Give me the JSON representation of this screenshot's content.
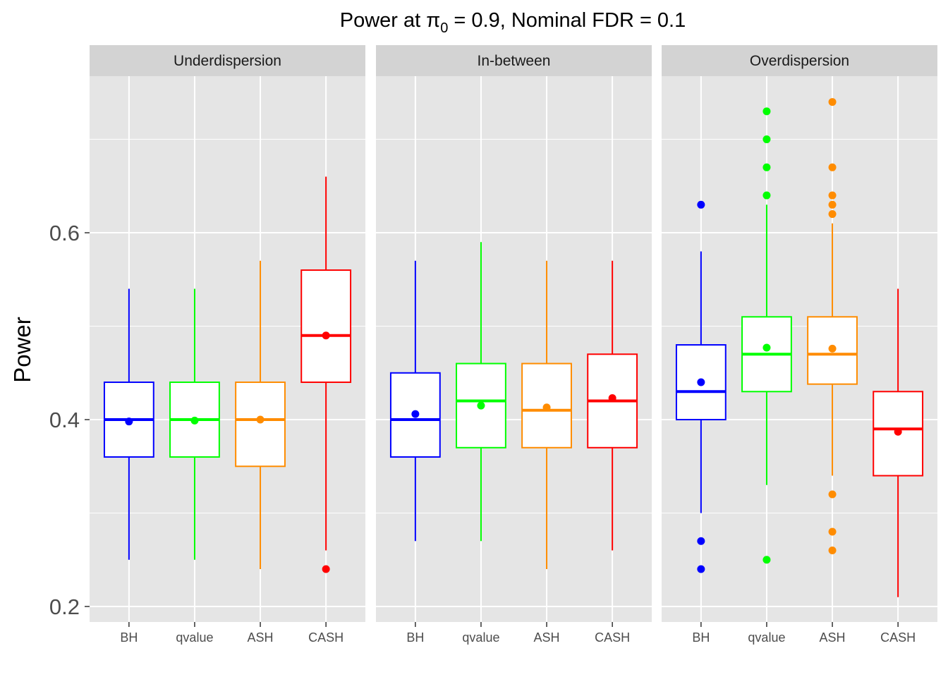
{
  "chart_data": {
    "type": "boxplot",
    "title_main": "Power at π",
    "title_sub": "0",
    "title_rest": " = 0.9, Nominal FDR = 0.1",
    "ylabel": "Power",
    "xlabel": "",
    "ylim": [
      0.1834,
      0.7676
    ],
    "yticks": [
      0.2,
      0.4,
      0.6
    ],
    "ytick_labels": [
      "0.2",
      "0.4",
      "0.6"
    ],
    "yminor": [
      0.3,
      0.5,
      0.7
    ],
    "grid": true,
    "categories": [
      "BH",
      "qvalue",
      "ASH",
      "CASH"
    ],
    "colors": {
      "BH": "#0000FF",
      "qvalue": "#00FF00",
      "ASH": "#FF8C00",
      "CASH": "#FF0000"
    },
    "panel_background": "#E5E5E5",
    "strip_background": "#D3D3D3",
    "panels": [
      {
        "name": "Underdispersion",
        "boxes": [
          {
            "lower_whisker": 0.25,
            "q1": 0.36,
            "median": 0.4,
            "q3": 0.44,
            "upper_whisker": 0.54,
            "mean": 0.398,
            "outliers": []
          },
          {
            "lower_whisker": 0.25,
            "q1": 0.36,
            "median": 0.4,
            "q3": 0.44,
            "upper_whisker": 0.54,
            "mean": 0.399,
            "outliers": []
          },
          {
            "lower_whisker": 0.24,
            "q1": 0.35,
            "median": 0.4,
            "q3": 0.44,
            "upper_whisker": 0.57,
            "mean": 0.4,
            "outliers": []
          },
          {
            "lower_whisker": 0.26,
            "q1": 0.44,
            "median": 0.49,
            "q3": 0.56,
            "upper_whisker": 0.66,
            "mean": 0.49,
            "outliers": [
              0.24
            ]
          }
        ]
      },
      {
        "name": "In-between",
        "boxes": [
          {
            "lower_whisker": 0.27,
            "q1": 0.36,
            "median": 0.4,
            "q3": 0.45,
            "upper_whisker": 0.57,
            "mean": 0.406,
            "outliers": []
          },
          {
            "lower_whisker": 0.27,
            "q1": 0.37,
            "median": 0.42,
            "q3": 0.46,
            "upper_whisker": 0.59,
            "mean": 0.415,
            "outliers": []
          },
          {
            "lower_whisker": 0.24,
            "q1": 0.37,
            "median": 0.41,
            "q3": 0.46,
            "upper_whisker": 0.57,
            "mean": 0.413,
            "outliers": []
          },
          {
            "lower_whisker": 0.26,
            "q1": 0.37,
            "median": 0.42,
            "q3": 0.47,
            "upper_whisker": 0.57,
            "mean": 0.423,
            "outliers": []
          }
        ]
      },
      {
        "name": "Overdispersion",
        "boxes": [
          {
            "lower_whisker": 0.3,
            "q1": 0.4,
            "median": 0.43,
            "q3": 0.48,
            "upper_whisker": 0.58,
            "mean": 0.44,
            "outliers": [
              0.63,
              0.27,
              0.24
            ]
          },
          {
            "lower_whisker": 0.33,
            "q1": 0.43,
            "median": 0.47,
            "q3": 0.51,
            "upper_whisker": 0.63,
            "mean": 0.477,
            "outliers": [
              0.73,
              0.7,
              0.67,
              0.64,
              0.25
            ]
          },
          {
            "lower_whisker": 0.34,
            "q1": 0.438,
            "median": 0.47,
            "q3": 0.51,
            "upper_whisker": 0.61,
            "mean": 0.476,
            "outliers": [
              0.74,
              0.67,
              0.64,
              0.63,
              0.62,
              0.32,
              0.28,
              0.26
            ]
          },
          {
            "lower_whisker": 0.21,
            "q1": 0.34,
            "median": 0.39,
            "q3": 0.43,
            "upper_whisker": 0.54,
            "mean": 0.387,
            "outliers": []
          }
        ]
      }
    ]
  }
}
